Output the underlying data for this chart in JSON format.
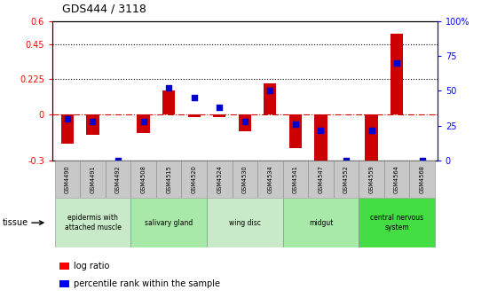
{
  "title": "GDS444 / 3118",
  "samples": [
    "GSM4490",
    "GSM4491",
    "GSM4492",
    "GSM4508",
    "GSM4515",
    "GSM4520",
    "GSM4524",
    "GSM4530",
    "GSM4534",
    "GSM4541",
    "GSM4547",
    "GSM4552",
    "GSM4559",
    "GSM4564",
    "GSM4568"
  ],
  "log_ratio": [
    -0.19,
    -0.13,
    0.0,
    -0.12,
    0.155,
    -0.02,
    -0.02,
    -0.11,
    0.2,
    -0.22,
    -0.295,
    0.0,
    -0.295,
    0.52,
    0.0
  ],
  "percentile": [
    30,
    28,
    0,
    28,
    52,
    45,
    38,
    28,
    50,
    26,
    22,
    0,
    22,
    70,
    0
  ],
  "tissue_groups": [
    {
      "label": "epidermis with\nattached muscle",
      "start": 0,
      "end": 2,
      "color": "#c8eac8"
    },
    {
      "label": "salivary gland",
      "start": 3,
      "end": 5,
      "color": "#a8e8a8"
    },
    {
      "label": "wing disc",
      "start": 6,
      "end": 8,
      "color": "#c8eac8"
    },
    {
      "label": "midgut",
      "start": 9,
      "end": 11,
      "color": "#a8e8a8"
    },
    {
      "label": "central nervous\nsystem",
      "start": 12,
      "end": 14,
      "color": "#44dd44"
    }
  ],
  "ylim_left": [
    -0.3,
    0.6
  ],
  "ylim_right": [
    0,
    100
  ],
  "yticks_left": [
    -0.3,
    0.0,
    0.225,
    0.45,
    0.6
  ],
  "ytick_labels_left": [
    "-0.3",
    "0",
    "0.225",
    "0.45",
    "0.6"
  ],
  "yticks_right": [
    0,
    25,
    50,
    75,
    100
  ],
  "ytick_labels_right": [
    "0",
    "25",
    "50",
    "75",
    "100%"
  ],
  "hlines": [
    0.225,
    0.45
  ],
  "bar_color": "#cc0000",
  "dot_color": "#0000cc",
  "zero_line_color": "#cc0000",
  "sample_box_color": "#c8c8c8",
  "fig_width": 5.6,
  "fig_height": 3.36,
  "fig_dpi": 100
}
